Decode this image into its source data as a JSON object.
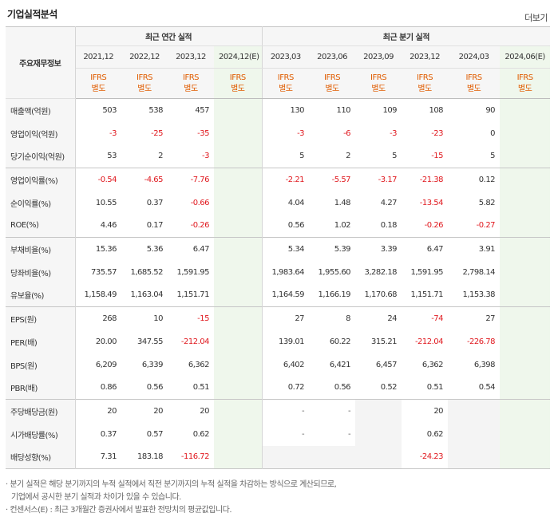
{
  "title": "기업실적분석",
  "more": "더보기",
  "header": {
    "row_label": "주요재무정보",
    "annual_group": "최근 연간 실적",
    "quarter_group": "최근 분기 실적",
    "periods": [
      "2021,12",
      "2022,12",
      "2023,12",
      "2024,12(E)",
      "2023,03",
      "2023,06",
      "2023,09",
      "2023,12",
      "2024,03",
      "2024,06(E)"
    ],
    "ifrs_top": "IFRS",
    "ifrs_bottom": "별도"
  },
  "rows": [
    {
      "label": "매출액(억원)",
      "values": [
        "503",
        "538",
        "457",
        "",
        "130",
        "110",
        "109",
        "108",
        "90",
        ""
      ]
    },
    {
      "label": "영업이익(억원)",
      "values": [
        "-3",
        "-25",
        "-35",
        "",
        "-3",
        "-6",
        "-3",
        "-23",
        "0",
        ""
      ]
    },
    {
      "label": "당기순이익(억원)",
      "values": [
        "53",
        "2",
        "-3",
        "",
        "5",
        "2",
        "5",
        "-15",
        "5",
        ""
      ]
    },
    {
      "label": "영업이익률(%)",
      "values": [
        "-0.54",
        "-4.65",
        "-7.76",
        "",
        "-2.21",
        "-5.57",
        "-3.17",
        "-21.38",
        "0.12",
        ""
      ]
    },
    {
      "label": "순이익률(%)",
      "values": [
        "10.55",
        "0.37",
        "-0.66",
        "",
        "4.04",
        "1.48",
        "4.27",
        "-13.54",
        "5.82",
        ""
      ]
    },
    {
      "label": "ROE(%)",
      "values": [
        "4.46",
        "0.17",
        "-0.26",
        "",
        "0.56",
        "1.02",
        "0.18",
        "-0.26",
        "-0.27",
        ""
      ]
    },
    {
      "label": "부채비율(%)",
      "values": [
        "15.36",
        "5.36",
        "6.47",
        "",
        "5.34",
        "5.39",
        "3.39",
        "6.47",
        "3.91",
        ""
      ]
    },
    {
      "label": "당좌비율(%)",
      "values": [
        "735.57",
        "1,685.52",
        "1,591.95",
        "",
        "1,983.64",
        "1,955.60",
        "3,282.18",
        "1,591.95",
        "2,798.14",
        ""
      ]
    },
    {
      "label": "유보율(%)",
      "values": [
        "1,158.49",
        "1,163.04",
        "1,151.71",
        "",
        "1,164.59",
        "1,166.19",
        "1,170.68",
        "1,151.71",
        "1,153.38",
        ""
      ]
    },
    {
      "label": "EPS(원)",
      "values": [
        "268",
        "10",
        "-15",
        "",
        "27",
        "8",
        "24",
        "-74",
        "27",
        ""
      ]
    },
    {
      "label": "PER(배)",
      "values": [
        "20.00",
        "347.55",
        "-212.04",
        "",
        "139.01",
        "60.22",
        "315.21",
        "-212.04",
        "-226.78",
        ""
      ]
    },
    {
      "label": "BPS(원)",
      "values": [
        "6,209",
        "6,339",
        "6,362",
        "",
        "6,402",
        "6,421",
        "6,457",
        "6,362",
        "6,398",
        ""
      ]
    },
    {
      "label": "PBR(배)",
      "values": [
        "0.86",
        "0.56",
        "0.51",
        "",
        "0.72",
        "0.56",
        "0.52",
        "0.51",
        "0.54",
        ""
      ]
    },
    {
      "label": "주당배당금(원)",
      "values": [
        "20",
        "20",
        "20",
        "",
        "-",
        "-",
        "",
        "20",
        "",
        ""
      ]
    },
    {
      "label": "시가배당률(%)",
      "values": [
        "0.37",
        "0.57",
        "0.62",
        "",
        "-",
        "-",
        "",
        "0.62",
        "",
        ""
      ]
    },
    {
      "label": "배당성향(%)",
      "values": [
        "7.31",
        "183.18",
        "-116.72",
        "",
        "",
        "",
        "",
        "-24.23",
        "",
        ""
      ]
    }
  ],
  "notes": [
    "· 분기 실적은 해당 분기까지의 누적 실적에서 직전 분기까지의 누적 실적을 차감하는 방식으로 계산되므로,",
    "기업에서 공시한 분기 실적과 차이가 있을 수 있습니다.",
    "· 컨센서스(E) : 최근 3개월간 증권사에서 발표한 전망치의 평균값입니다."
  ]
}
